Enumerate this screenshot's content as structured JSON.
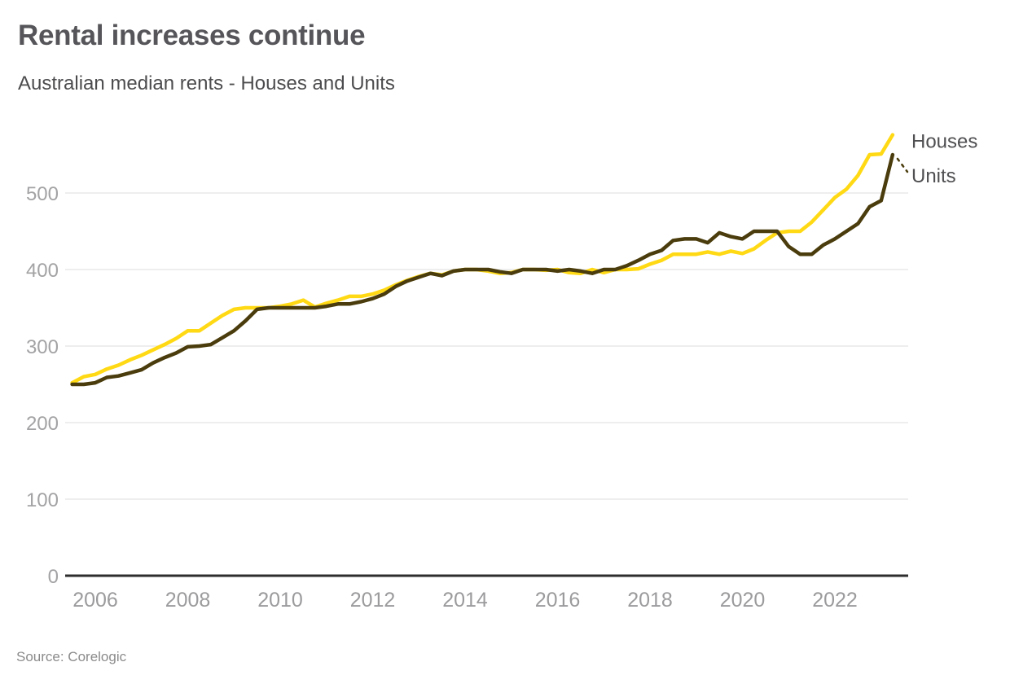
{
  "chart_data": {
    "type": "line",
    "title": "Rental increases continue",
    "subtitle": "Australian median rents - Houses and Units",
    "source": "Source: Corelogic",
    "xlabel": "",
    "ylabel": "",
    "grid": "horizontal",
    "legend_position": "end-of-line-labels",
    "xlim": [
      2005.35,
      2023.6
    ],
    "ylim": [
      0,
      590
    ],
    "yticks": [
      0,
      100,
      200,
      300,
      400,
      500
    ],
    "xticks": [
      2006,
      2008,
      2010,
      2012,
      2014,
      2016,
      2018,
      2020,
      2022
    ],
    "x": [
      2005.5,
      2005.75,
      2006,
      2006.25,
      2006.5,
      2006.75,
      2007,
      2007.25,
      2007.5,
      2007.75,
      2008,
      2008.25,
      2008.5,
      2008.75,
      2009,
      2009.25,
      2009.5,
      2009.75,
      2010,
      2010.25,
      2010.5,
      2010.75,
      2011,
      2011.25,
      2011.5,
      2011.75,
      2012,
      2012.25,
      2012.5,
      2012.75,
      2013,
      2013.25,
      2013.5,
      2013.75,
      2014,
      2014.25,
      2014.5,
      2014.75,
      2015,
      2015.25,
      2015.5,
      2015.75,
      2016,
      2016.25,
      2016.5,
      2016.75,
      2017,
      2017.25,
      2017.5,
      2017.75,
      2018,
      2018.25,
      2018.5,
      2018.75,
      2019,
      2019.25,
      2019.5,
      2019.75,
      2020,
      2020.25,
      2020.5,
      2020.75,
      2021,
      2021.25,
      2021.5,
      2021.75,
      2022,
      2022.25,
      2022.5,
      2022.75,
      2023,
      2023.25
    ],
    "series": [
      {
        "name": "Houses",
        "color": "#FFD914",
        "values": [
          252,
          260,
          263,
          270,
          275,
          282,
          288,
          295,
          302,
          310,
          320,
          320,
          330,
          340,
          348,
          350,
          350,
          350,
          352,
          355,
          360,
          351,
          356,
          360,
          365,
          365,
          368,
          373,
          380,
          386,
          391,
          395,
          393,
          398,
          400,
          400,
          398,
          395,
          396,
          400,
          400,
          399,
          400,
          396,
          395,
          400,
          396,
          400,
          400,
          401,
          407,
          412,
          420,
          420,
          420,
          423,
          420,
          424,
          421,
          427,
          438,
          448,
          450,
          450,
          462,
          478,
          494,
          505,
          523,
          550,
          551,
          576
        ]
      },
      {
        "name": "Units",
        "color": "#4A3C0C",
        "values": [
          250,
          250,
          252,
          259,
          261,
          265,
          269,
          278,
          285,
          291,
          299,
          300,
          302,
          311,
          320,
          333,
          348,
          350,
          350,
          350,
          350,
          350,
          352,
          355,
          355,
          358,
          362,
          368,
          378,
          385,
          390,
          395,
          392,
          398,
          400,
          400,
          400,
          397,
          395,
          400,
          400,
          400,
          398,
          400,
          398,
          395,
          400,
          400,
          405,
          412,
          420,
          425,
          438,
          440,
          440,
          435,
          448,
          443,
          440,
          450,
          450,
          450,
          430,
          420,
          420,
          432,
          440,
          450,
          460,
          482,
          490,
          550
        ]
      }
    ],
    "colors": {
      "houses_line": "#FFD914",
      "units_line": "#4A3C0C",
      "axis_line": "#2d2d2d",
      "gridline": "#e9e9e9",
      "tick_label": "#9e9ea0",
      "title_text": "#56565a"
    }
  }
}
